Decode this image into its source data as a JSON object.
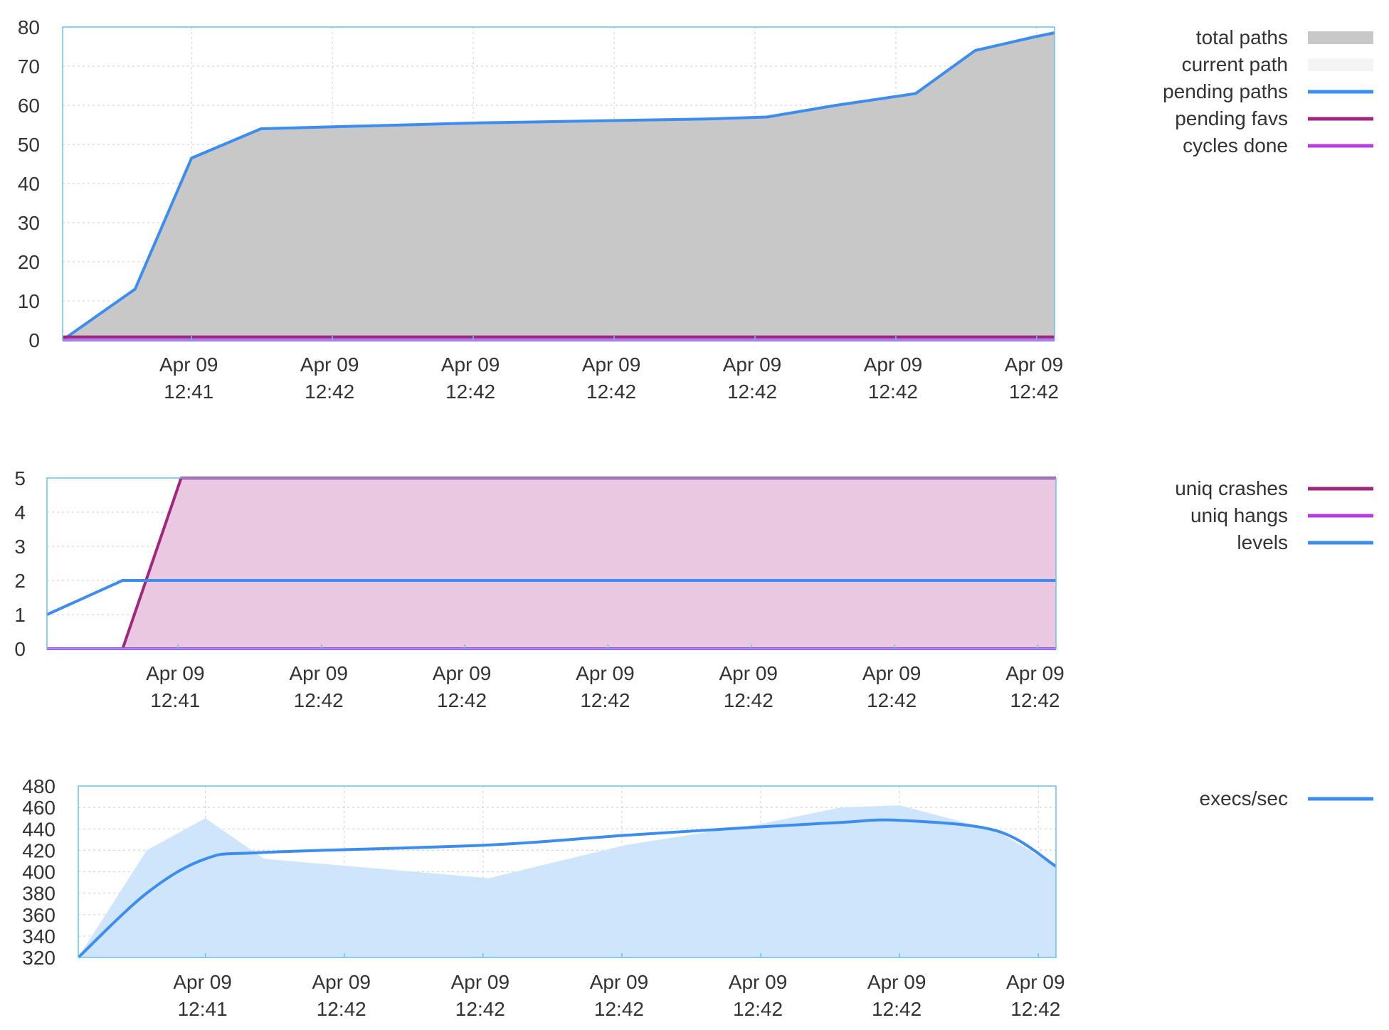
{
  "chart_data": [
    {
      "type": "area",
      "x_ticks": [
        [
          "Apr 09",
          "12:41"
        ],
        [
          "Apr 09",
          "12:42"
        ],
        [
          "Apr 09",
          "12:42"
        ],
        [
          "Apr 09",
          "12:42"
        ],
        [
          "Apr 09",
          "12:42"
        ],
        [
          "Apr 09",
          "12:42"
        ],
        [
          "Apr 09",
          "12:42"
        ]
      ],
      "x_tick_pos": [
        0.13,
        0.272,
        0.414,
        0.556,
        0.698,
        0.84,
        0.982
      ],
      "ylim": [
        0,
        80
      ],
      "y_ticks": [
        0,
        10,
        20,
        30,
        40,
        50,
        60,
        70,
        80
      ],
      "grid": true,
      "legend_position": "right",
      "series": [
        {
          "name": "total paths",
          "style": "area",
          "color": "#c8c8c8",
          "x": [
            0,
            0.073,
            0.13,
            0.2,
            0.42,
            0.65,
            0.71,
            0.78,
            0.86,
            0.92,
            1
          ],
          "values": [
            0,
            13,
            46.5,
            54,
            55.5,
            56.5,
            57,
            60,
            63,
            74,
            79
          ]
        },
        {
          "name": "current path",
          "style": "area",
          "color": "#f4f4f4",
          "x": [
            0,
            1
          ],
          "values": [
            0,
            0
          ]
        },
        {
          "name": "pending paths",
          "style": "line",
          "color": "#3c8dee",
          "x": [
            0,
            0.073,
            0.13,
            0.2,
            0.42,
            0.65,
            0.71,
            0.78,
            0.86,
            0.92,
            0.98,
            1
          ],
          "values": [
            0,
            13,
            46.5,
            54,
            55.5,
            56.5,
            57,
            60,
            63,
            74,
            77.5,
            78.5
          ]
        },
        {
          "name": "pending favs",
          "style": "line",
          "color": "#a3267e",
          "x": [
            0,
            1
          ],
          "values": [
            0.8,
            0.8
          ]
        },
        {
          "name": "cycles done",
          "style": "line",
          "color": "#b73ee0",
          "x": [
            0,
            1
          ],
          "values": [
            0,
            0
          ]
        }
      ]
    },
    {
      "type": "area",
      "x_ticks": [
        [
          "Apr 09",
          "12:41"
        ],
        [
          "Apr 09",
          "12:42"
        ],
        [
          "Apr 09",
          "12:42"
        ],
        [
          "Apr 09",
          "12:42"
        ],
        [
          "Apr 09",
          "12:42"
        ],
        [
          "Apr 09",
          "12:42"
        ],
        [
          "Apr 09",
          "12:42"
        ]
      ],
      "x_tick_pos": [
        0.13,
        0.272,
        0.414,
        0.556,
        0.698,
        0.84,
        0.982
      ],
      "ylim": [
        0,
        5
      ],
      "y_ticks": [
        0,
        1,
        2,
        3,
        4,
        5
      ],
      "grid": true,
      "legend_position": "right",
      "series": [
        {
          "name": "uniq crashes",
          "style": "area-line",
          "color": "#a3267e",
          "fill": "#ebc8e2",
          "x": [
            0,
            0.075,
            0.133,
            1
          ],
          "values": [
            0,
            0,
            5,
            5
          ]
        },
        {
          "name": "uniq hangs",
          "style": "line",
          "color": "#b73ee0",
          "x": [
            0,
            1
          ],
          "values": [
            0,
            0
          ]
        },
        {
          "name": "levels",
          "style": "line",
          "color": "#3c8dee",
          "x": [
            0,
            0.075,
            1
          ],
          "values": [
            1,
            2,
            2
          ]
        }
      ]
    },
    {
      "type": "area",
      "x_ticks": [
        [
          "Apr 09",
          "12:41"
        ],
        [
          "Apr 09",
          "12:42"
        ],
        [
          "Apr 09",
          "12:42"
        ],
        [
          "Apr 09",
          "12:42"
        ],
        [
          "Apr 09",
          "12:42"
        ],
        [
          "Apr 09",
          "12:42"
        ],
        [
          "Apr 09",
          "12:42"
        ]
      ],
      "x_tick_pos": [
        0.13,
        0.272,
        0.414,
        0.556,
        0.698,
        0.84,
        0.982
      ],
      "ylim": [
        320,
        480
      ],
      "y_ticks": [
        320,
        340,
        360,
        380,
        400,
        420,
        440,
        460,
        480
      ],
      "grid": true,
      "legend_position": "right",
      "series": [
        {
          "name": "execs/sec",
          "style": "area-line",
          "color": "#3c8dee",
          "fill": "#cfe5fb",
          "x": [
            0,
            0.07,
            0.13,
            0.19,
            0.42,
            0.56,
            0.7,
            0.78,
            0.84,
            0.94,
            1
          ],
          "area_values": [
            320,
            420,
            450,
            412,
            394,
            425,
            445,
            460,
            462,
            438,
            405
          ],
          "values": [
            320,
            380,
            412,
            418,
            425,
            434,
            442,
            446,
            448,
            438,
            405
          ]
        }
      ]
    }
  ]
}
